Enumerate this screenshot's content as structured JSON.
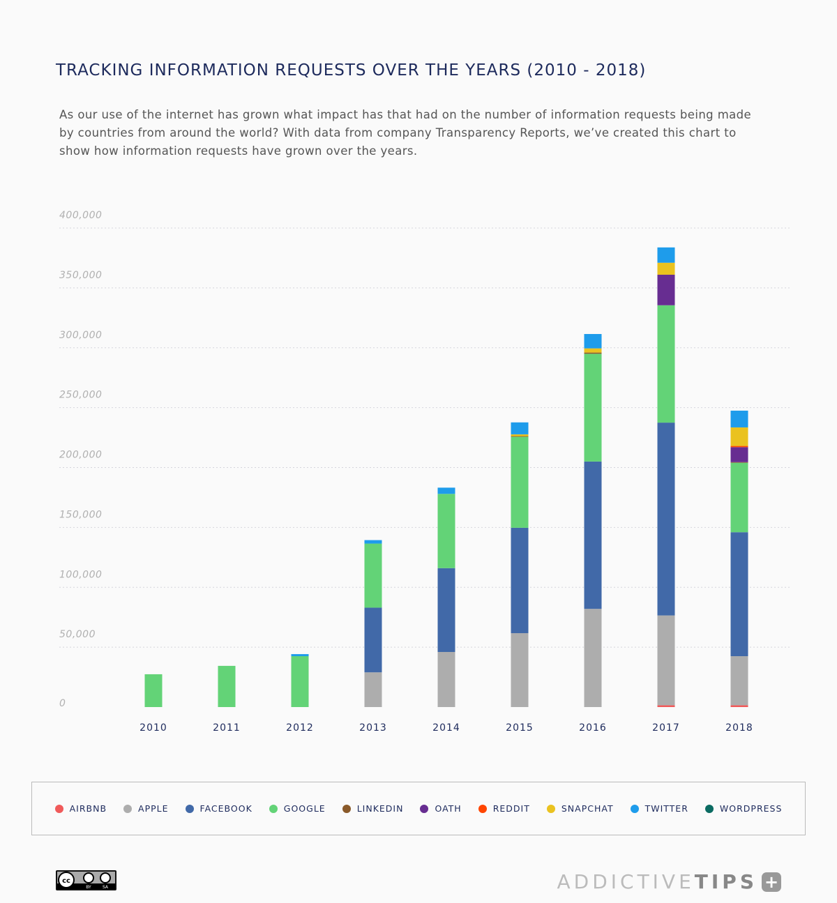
{
  "chart_data": {
    "type": "bar",
    "stacked": true,
    "title": "TRACKING INFORMATION REQUESTS OVER THE YEARS (2010 - 2018)",
    "subtitle": "As our use of the internet has grown what impact has that had on the number of information requests being made by countries from around the world? With data from company Transparency Reports, we’ve created this chart to show how information requests have grown over the years.",
    "categories": [
      "2010",
      "2011",
      "2012",
      "2013",
      "2014",
      "2015",
      "2016",
      "2017",
      "2018"
    ],
    "ylim": [
      0,
      400000
    ],
    "yticks": [
      "0",
      "50,000",
      "100,000",
      "150,000",
      "200,000",
      "250,000",
      "300,000",
      "350,000",
      "400,000"
    ],
    "grid": true,
    "legend_position": "bottom",
    "series": [
      {
        "name": "AIRBNB",
        "color": "#f05a5a",
        "values": [
          0,
          0,
          0,
          0,
          0,
          0,
          0,
          1500,
          1500
        ]
      },
      {
        "name": "APPLE",
        "color": "#adadad",
        "values": [
          0,
          0,
          0,
          29000,
          46000,
          61700,
          82000,
          75000,
          41000
        ]
      },
      {
        "name": "FACEBOOK",
        "color": "#4169a8",
        "values": [
          0,
          0,
          0,
          54000,
          70000,
          88000,
          123000,
          161000,
          103500
        ]
      },
      {
        "name": "GOOGLE",
        "color": "#63d377",
        "values": [
          27400,
          34400,
          42500,
          53500,
          62000,
          76000,
          90000,
          98000,
          58000
        ]
      },
      {
        "name": "LINKEDIN",
        "color": "#8a5a2a",
        "values": [
          0,
          0,
          0,
          0,
          0,
          500,
          1000,
          0,
          500
        ]
      },
      {
        "name": "OATH",
        "color": "#672d91",
        "values": [
          0,
          0,
          0,
          0,
          0,
          0,
          0,
          25500,
          12500
        ]
      },
      {
        "name": "REDDIT",
        "color": "#ff4500",
        "values": [
          0,
          0,
          0,
          0,
          0,
          0,
          0,
          0,
          1000
        ]
      },
      {
        "name": "SNAPCHAT",
        "color": "#eac21f",
        "values": [
          0,
          0,
          0,
          0,
          0,
          1500,
          3500,
          10000,
          15500
        ]
      },
      {
        "name": "TWITTER",
        "color": "#1e9ceb",
        "values": [
          0,
          0,
          1700,
          2900,
          5200,
          10000,
          12000,
          12800,
          14000
        ]
      },
      {
        "name": "WORDPRESS",
        "color": "#0b6b62",
        "values": [
          0,
          0,
          0,
          0,
          0,
          0,
          0,
          0,
          0
        ]
      }
    ]
  },
  "footer": {
    "license": "CC BY SA",
    "logo_light": "ADDICTIVE",
    "logo_bold": "TIPS",
    "logo_plus": "+"
  }
}
